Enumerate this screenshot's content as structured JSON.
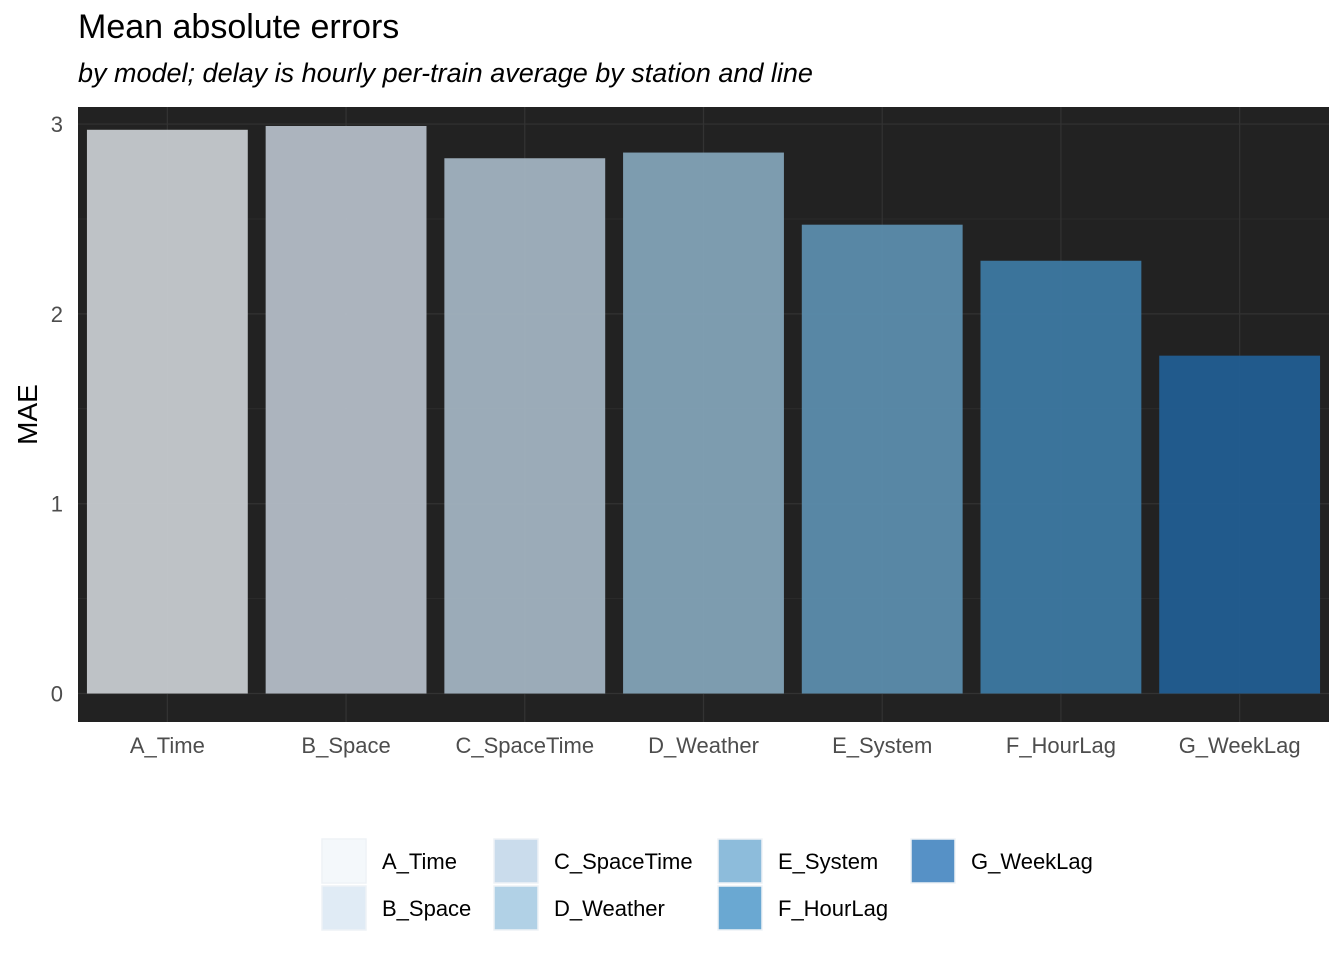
{
  "chart_data": {
    "type": "bar",
    "title": "Mean absolute errors",
    "subtitle": "by model; delay is hourly per-train average by station and line",
    "xlabel": "",
    "ylabel": "MAE",
    "ylim": [
      -0.15,
      3.09
    ],
    "yticks": [
      0,
      1,
      2,
      3
    ],
    "grid": true,
    "legend_position": "bottom",
    "categories": [
      "A_Time",
      "B_Space",
      "C_SpaceTime",
      "D_Weather",
      "E_System",
      "F_HourLag",
      "G_WeekLag"
    ],
    "values": [
      2.97,
      2.99,
      2.82,
      2.85,
      2.47,
      2.28,
      1.78
    ],
    "bar_colors": [
      "#c2c6ca",
      "#afb8c2",
      "#9eaebc",
      "#7f9fb3",
      "#5a8aa8",
      "#3c769e",
      "#225c8f"
    ],
    "legend": {
      "entries": [
        "A_Time",
        "B_Space",
        "C_SpaceTime",
        "D_Weather",
        "E_System",
        "F_HourLag",
        "G_WeekLag"
      ],
      "colors": [
        "#f4f8fb",
        "#e0ebf5",
        "#cadcec",
        "#b1d1e6",
        "#8dbcdb",
        "#6aa8d2",
        "#5691c6"
      ]
    },
    "panel_background": "#222222",
    "grid_color": "#333333"
  }
}
